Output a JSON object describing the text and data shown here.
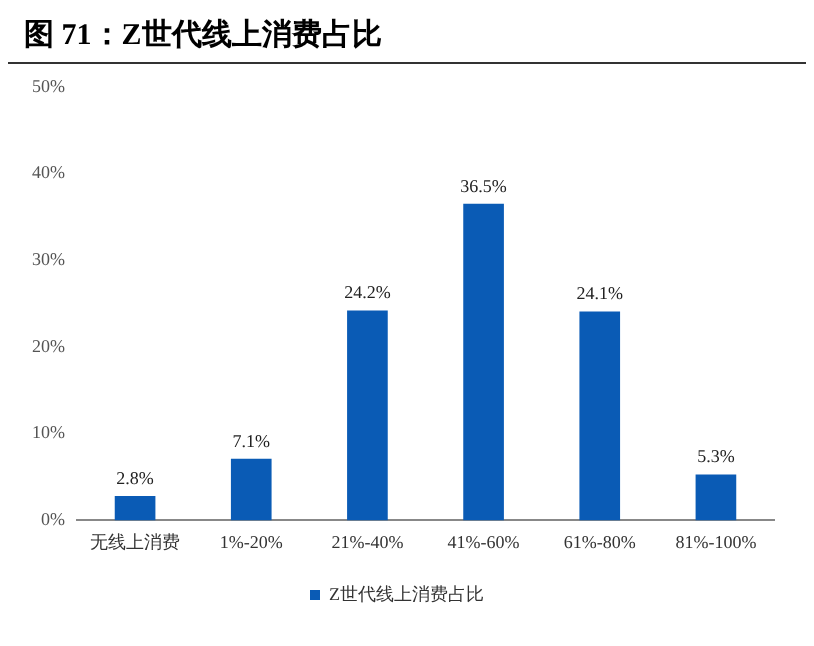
{
  "chart_data": {
    "type": "bar",
    "title": "图 71：Z世代线上消费占比",
    "categories": [
      "无线上消费",
      "1%-20%",
      "21%-40%",
      "41%-60%",
      "61%-80%",
      "81%-100%"
    ],
    "series": [
      {
        "name": "Z世代线上消费占比",
        "color": "#0a5bb5",
        "values": [
          2.8,
          7.1,
          24.2,
          36.5,
          24.1,
          5.3
        ],
        "value_labels": [
          "2.8%",
          "7.1%",
          "24.2%",
          "36.5%",
          "24.1%",
          "5.3%"
        ]
      }
    ],
    "ylim": [
      0,
      50
    ],
    "yticks": [
      {
        "value": 0,
        "label": "0%"
      },
      {
        "value": 10,
        "label": "10%"
      },
      {
        "value": 20,
        "label": "20%"
      },
      {
        "value": 30,
        "label": "30%"
      },
      {
        "value": 40,
        "label": "40%"
      },
      {
        "value": 50,
        "label": "50%"
      }
    ],
    "grid": false,
    "legend": "bottom"
  }
}
